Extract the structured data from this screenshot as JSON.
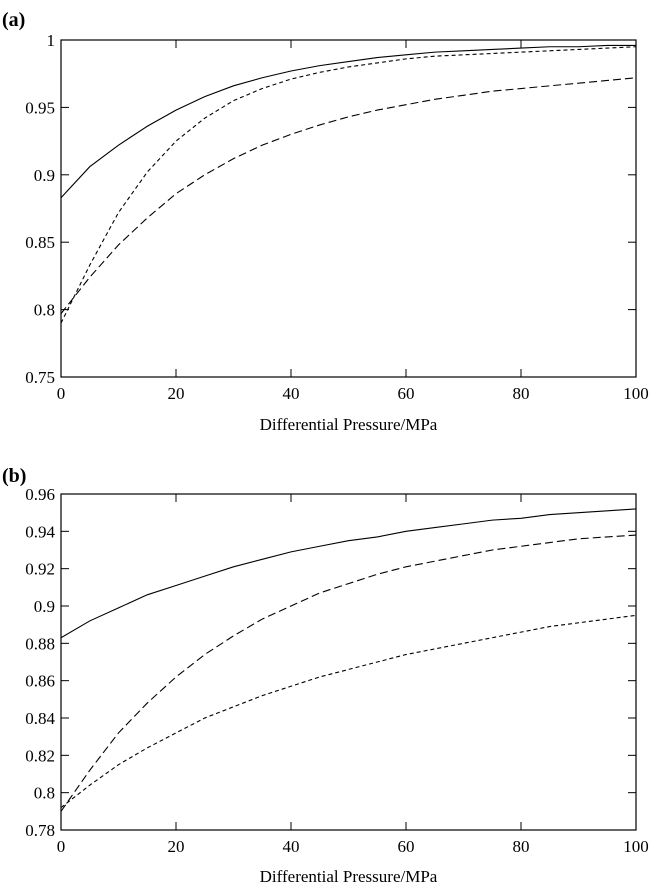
{
  "chart_data": [
    {
      "panel_label": "(a)",
      "type": "line",
      "xlabel": "Differential Pressure/MPa",
      "ylabel": "",
      "xlim": [
        0,
        100
      ],
      "ylim": [
        0.75,
        1
      ],
      "xticks": [
        "0",
        "20",
        "40",
        "60",
        "80",
        "100"
      ],
      "yticks": [
        "0.75",
        "0.8",
        "0.85",
        "0.9",
        "0.95",
        "1"
      ],
      "grid": false,
      "x": [
        0,
        5,
        10,
        15,
        20,
        25,
        30,
        35,
        40,
        45,
        50,
        55,
        60,
        65,
        70,
        75,
        80,
        85,
        90,
        95,
        100
      ],
      "series": [
        {
          "style": "solid",
          "values": [
            0.883,
            0.906,
            0.922,
            0.936,
            0.948,
            0.958,
            0.966,
            0.972,
            0.977,
            0.981,
            0.984,
            0.987,
            0.989,
            0.991,
            0.992,
            0.993,
            0.994,
            0.995,
            0.995,
            0.996,
            0.996
          ]
        },
        {
          "style": "short-dash",
          "values": [
            0.79,
            0.833,
            0.872,
            0.902,
            0.925,
            0.942,
            0.955,
            0.964,
            0.971,
            0.976,
            0.98,
            0.983,
            0.986,
            0.988,
            0.989,
            0.99,
            0.991,
            0.992,
            0.993,
            0.994,
            0.995
          ]
        },
        {
          "style": "long-dash",
          "values": [
            0.797,
            0.824,
            0.848,
            0.868,
            0.886,
            0.9,
            0.912,
            0.922,
            0.93,
            0.937,
            0.943,
            0.948,
            0.952,
            0.956,
            0.959,
            0.962,
            0.964,
            0.966,
            0.968,
            0.97,
            0.972
          ]
        }
      ]
    },
    {
      "panel_label": "(b)",
      "type": "line",
      "xlabel": "Differential Pressure/MPa",
      "ylabel": "",
      "xlim": [
        0,
        100
      ],
      "ylim": [
        0.78,
        0.96
      ],
      "xticks": [
        "0",
        "20",
        "40",
        "60",
        "80",
        "100"
      ],
      "yticks": [
        "0.78",
        "0.8",
        "0.82",
        "0.84",
        "0.86",
        "0.88",
        "0.9",
        "0.92",
        "0.94",
        "0.96"
      ],
      "grid": false,
      "x": [
        0,
        5,
        10,
        15,
        20,
        25,
        30,
        35,
        40,
        45,
        50,
        55,
        60,
        65,
        70,
        75,
        80,
        85,
        90,
        95,
        100
      ],
      "series": [
        {
          "style": "solid",
          "values": [
            0.883,
            0.892,
            0.899,
            0.906,
            0.911,
            0.916,
            0.921,
            0.925,
            0.929,
            0.932,
            0.935,
            0.937,
            0.94,
            0.942,
            0.944,
            0.946,
            0.947,
            0.949,
            0.95,
            0.951,
            0.952
          ]
        },
        {
          "style": "long-dash",
          "values": [
            0.79,
            0.812,
            0.832,
            0.848,
            0.862,
            0.874,
            0.884,
            0.893,
            0.9,
            0.907,
            0.912,
            0.917,
            0.921,
            0.924,
            0.927,
            0.93,
            0.932,
            0.934,
            0.936,
            0.937,
            0.938
          ]
        },
        {
          "style": "short-dash",
          "values": [
            0.792,
            0.804,
            0.815,
            0.824,
            0.832,
            0.84,
            0.846,
            0.852,
            0.857,
            0.862,
            0.866,
            0.87,
            0.874,
            0.877,
            0.88,
            0.883,
            0.886,
            0.889,
            0.891,
            0.893,
            0.895
          ]
        }
      ]
    }
  ]
}
